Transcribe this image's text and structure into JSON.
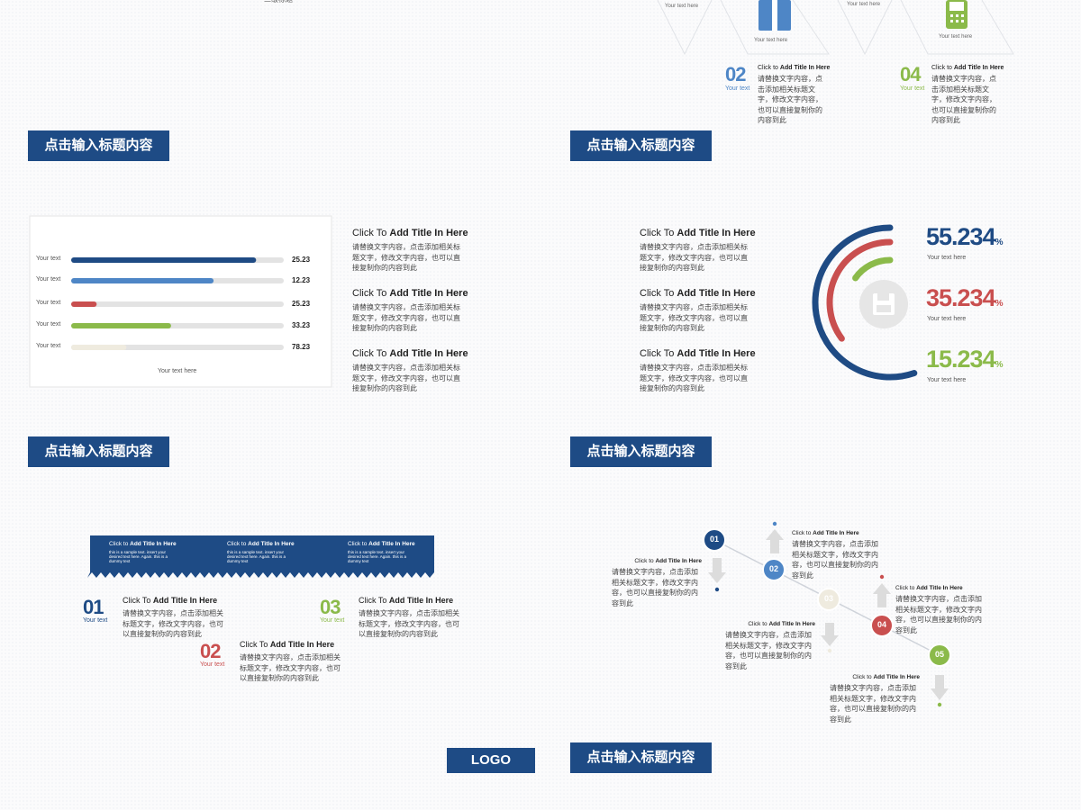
{
  "banners": [
    "点击输入标题内容",
    "点击输入标题内容",
    "点击输入标题内容",
    "点击输入标题内容",
    "点击输入标题内容"
  ],
  "logo": "LOGO",
  "slide1": {
    "bullet": "二级标题"
  },
  "slide2": {
    "icon_labels": [
      "Your text here",
      "Your text here",
      "Your text here",
      "Your text here"
    ],
    "items": [
      {
        "number": "02",
        "sub": "Your text",
        "title_lead": "Click to ",
        "title_bold": "Add Title In Here",
        "body": "请替换文字内容，点击添加相关标题文字，修改文字内容，也可以直接复制你的内容到此"
      },
      {
        "number": "04",
        "sub": "Your text",
        "title_lead": "Click to ",
        "title_bold": "Add Title In Here",
        "body": "请替换文字内容，点击添加相关标题文字，修改文字内容，也可以直接复制你的内容到此"
      }
    ]
  },
  "slide3": {
    "bars": {
      "type": "bar",
      "categories": [
        "Your text",
        "Your text",
        "Your text",
        "Your text",
        "Your text"
      ],
      "values": [
        25.23,
        12.23,
        25.23,
        33.23,
        78.23
      ],
      "fill": [
        87,
        67,
        12,
        47,
        26
      ],
      "xlim": [
        0,
        100
      ],
      "colors": [
        "#1f4b84",
        "#4e86c6",
        "#c94f4f",
        "#8bba4a",
        "#efebdf"
      ],
      "caption": "Your text here"
    },
    "items": [
      {
        "title_lead": "Click To ",
        "title_bold": "Add Title In Here",
        "body": "请替换文字内容，点击添加相关标题文字，修改文字内容，也可以直接复制你的内容到此"
      },
      {
        "title_lead": "Click To ",
        "title_bold": "Add Title In Here",
        "body": "请替换文字内容，点击添加相关标题文字，修改文字内容，也可以直接复制你的内容到此"
      },
      {
        "title_lead": "Click To ",
        "title_bold": "Add Title In Here",
        "body": "请替换文字内容，点击添加相关标题文字，修改文字内容，也可以直接复制你的内容到此"
      }
    ]
  },
  "slide4": {
    "items": [
      {
        "title_lead": "Click To ",
        "title_bold": "Add Title In Here",
        "body": "请替换文字内容，点击添加相关标题文字，修改文字内容，也可以直接复制你的内容到此"
      },
      {
        "title_lead": "Click To ",
        "title_bold": "Add Title In Here",
        "body": "请替换文字内容，点击添加相关标题文字，修改文字内容，也可以直接复制你的内容到此"
      },
      {
        "title_lead": "Click To ",
        "title_bold": "Add Title In Here",
        "body": "请替换文字内容，点击添加相关标题文字，修改文字内容，也可以直接复制你的内容到此"
      }
    ],
    "stats": {
      "values": [
        55.234,
        35.234,
        15.234
      ],
      "unit": "%",
      "colors": [
        "#1f4b84",
        "#c94f4f",
        "#8bba4a"
      ],
      "labels": [
        "Your text here",
        "Your text here",
        "Your text here"
      ]
    }
  },
  "slide5": {
    "banner_columns": [
      {
        "title_lead": "Click to ",
        "title_bold": "Add Title In Here",
        "body": "this is a sample text. insert your desired text here. Again. this is a dummy text"
      },
      {
        "title_lead": "Click to ",
        "title_bold": "Add Title In Here",
        "body": "this is a sample text. insert your desired text here. Again. this is a dummy text"
      },
      {
        "title_lead": "Click to ",
        "title_bold": "Add Title In Here",
        "body": "this is a sample text. insert your desired text here. Again. this is a dummy text"
      }
    ],
    "items": [
      {
        "number": "01",
        "sub": "Your text",
        "title_lead": "Click To ",
        "title_bold": "Add Title In Here",
        "body": "请替换文字内容，点击添加相关标题文字，修改文字内容，也可以直接复制你的内容到此"
      },
      {
        "number": "02",
        "sub": "Your text",
        "title_lead": "Click To ",
        "title_bold": "Add Title In Here",
        "body": "请替换文字内容，点击添加相关标题文字，修改文字内容，也可以直接复制你的内容到此"
      },
      {
        "number": "03",
        "sub": "Your text",
        "title_lead": "Click To ",
        "title_bold": "Add Title In Here",
        "body": "请替换文字内容，点击添加相关标题文字，修改文字内容，也可以直接复制你的内容到此"
      }
    ]
  },
  "slide6": {
    "nodes": [
      "01",
      "02",
      "03",
      "04",
      "05"
    ],
    "items": [
      {
        "title_lead": "Click to ",
        "title_bold": "Add Title In Here",
        "body": "请替换文字内容，点击添加相关标题文字，修改文字内容，也可以直接复制你的内容到此"
      },
      {
        "title_lead": "Click to ",
        "title_bold": "Add Title In Here",
        "body": "请替换文字内容，点击添加相关标题文字，修改文字内容，也可以直接复制你的内容到此"
      },
      {
        "title_lead": "Click to ",
        "title_bold": "Add Title In Here",
        "body": "请替换文字内容，点击添加相关标题文字，修改文字内容，也可以直接复制你的内容到此"
      },
      {
        "title_lead": "Click to ",
        "title_bold": "Add Title In Here",
        "body": "请替换文字内容，点击添加相关标题文字，修改文字内容，也可以直接复制你的内容到此"
      },
      {
        "title_lead": "Click to ",
        "title_bold": "Add Title In Here",
        "body": "请替换文字内容，点击添加相关标题文字，修改文字内容，也可以直接复制你的内容到此"
      }
    ]
  }
}
